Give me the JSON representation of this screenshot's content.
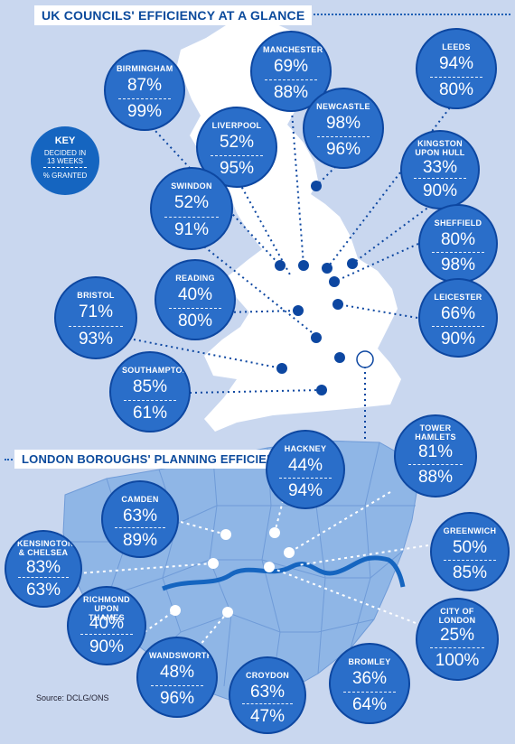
{
  "uk_title": "UK COUNCILS' EFFICIENCY AT A GLANCE",
  "london_title": "LONDON BOROUGHS' PLANNING EFFICIENCY",
  "source": "Source: DCLG/ONS",
  "key": {
    "title": "KEY",
    "line1": "DECIDED IN 13 WEEKS",
    "line2": "% GRANTED"
  },
  "colors": {
    "bubble": "#2a6ec9",
    "map": "#ffffff",
    "london_map": "#8fb6e6",
    "background": "#c9d7ef",
    "river": "#1565c0"
  },
  "uk": [
    {
      "name": "BIRMINGHAM",
      "decided": "87%",
      "granted": "99%"
    },
    {
      "name": "MANCHESTER",
      "decided": "69%",
      "granted": "88%"
    },
    {
      "name": "LEEDS",
      "decided": "94%",
      "granted": "80%"
    },
    {
      "name": "LIVERPOOL",
      "decided": "52%",
      "granted": "95%"
    },
    {
      "name": "NEWCASTLE",
      "decided": "98%",
      "granted": "96%"
    },
    {
      "name": "KINGSTON UPON HULL",
      "decided": "33%",
      "granted": "90%"
    },
    {
      "name": "SWINDON",
      "decided": "52%",
      "granted": "91%"
    },
    {
      "name": "SHEFFIELD",
      "decided": "80%",
      "granted": "98%"
    },
    {
      "name": "READING",
      "decided": "40%",
      "granted": "80%"
    },
    {
      "name": "BRISTOL",
      "decided": "71%",
      "granted": "93%"
    },
    {
      "name": "LEICESTER",
      "decided": "66%",
      "granted": "90%"
    },
    {
      "name": "SOUTHAMPTON",
      "decided": "85%",
      "granted": "61%"
    }
  ],
  "london": [
    {
      "name": "HACKNEY",
      "decided": "44%",
      "granted": "94%"
    },
    {
      "name": "TOWER HAMLETS",
      "decided": "81%",
      "granted": "88%"
    },
    {
      "name": "CAMDEN",
      "decided": "63%",
      "granted": "89%"
    },
    {
      "name": "KENSINGTON & CHELSEA",
      "decided": "83%",
      "granted": "63%"
    },
    {
      "name": "GREENWICH",
      "decided": "50%",
      "granted": "85%"
    },
    {
      "name": "RICHMOND UPON THAMES",
      "decided": "40%",
      "granted": "90%"
    },
    {
      "name": "CITY OF LONDON",
      "decided": "25%",
      "granted": "100%"
    },
    {
      "name": "WANDSWORTH",
      "decided": "48%",
      "granted": "96%"
    },
    {
      "name": "CROYDON",
      "decided": "63%",
      "granted": "47%"
    },
    {
      "name": "BROMLEY",
      "decided": "36%",
      "granted": "64%"
    }
  ]
}
